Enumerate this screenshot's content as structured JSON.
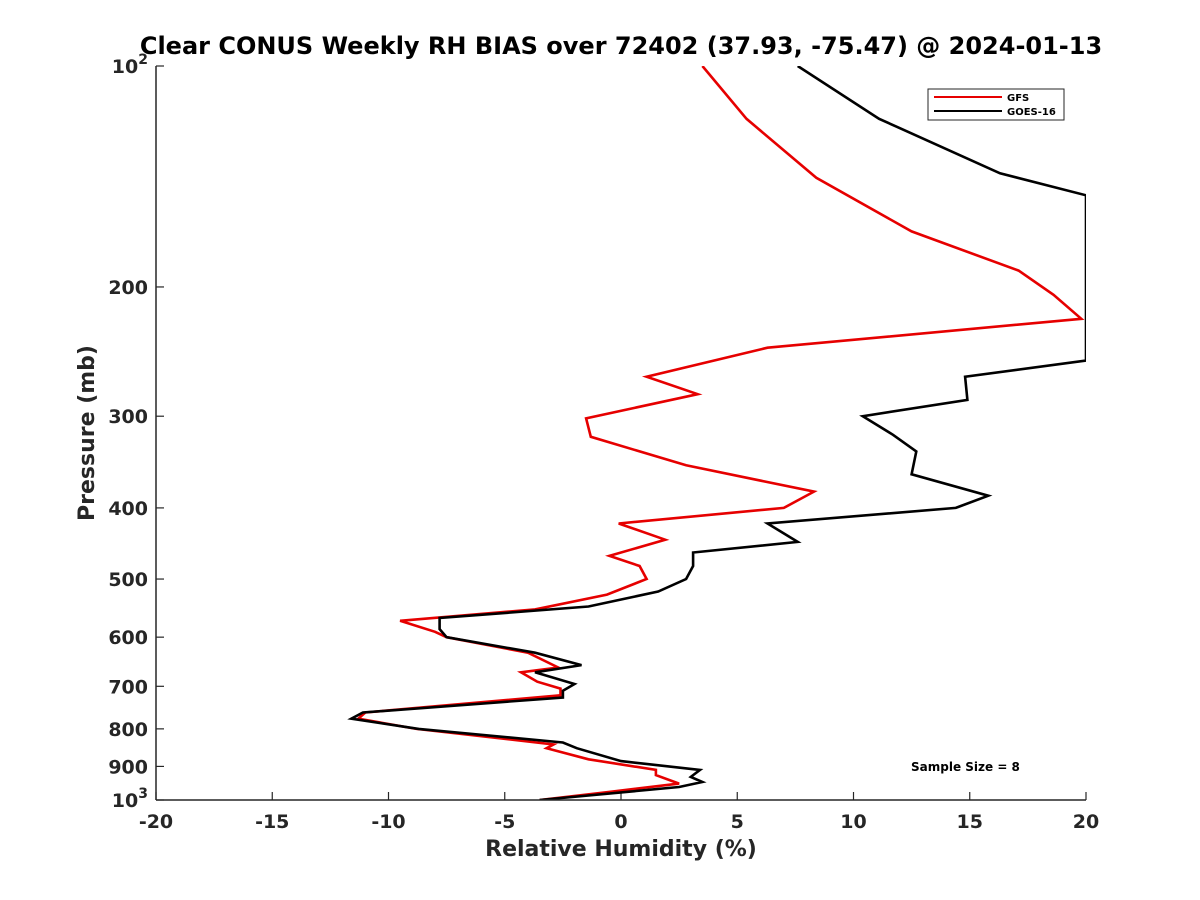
{
  "chart_data": {
    "type": "line",
    "title": "Clear CONUS Weekly RH BIAS over 72402 (37.93, -75.47) @ 2024-01-13",
    "xlabel": "Relative Humidity (%)",
    "ylabel": "Pressure (mb)",
    "xlim": [
      -20,
      20
    ],
    "ylim": [
      100,
      1000
    ],
    "yscale": "log",
    "y_reversed": true,
    "grid": false,
    "legend_position": "top-right",
    "x_ticks": [
      -20,
      -15,
      -10,
      -5,
      0,
      5,
      10,
      15,
      20
    ],
    "x_tick_labels": [
      "-20",
      "-15",
      "-10",
      "-5",
      "0",
      "5",
      "10",
      "15",
      "20"
    ],
    "y_ticks": [
      100,
      200,
      300,
      400,
      500,
      600,
      700,
      800,
      900,
      1000
    ],
    "y_tick_labels": [
      {
        "base": "10",
        "exp": "2"
      },
      {
        "base": "200",
        "exp": ""
      },
      {
        "base": "300",
        "exp": ""
      },
      {
        "base": "400",
        "exp": ""
      },
      {
        "base": "500",
        "exp": ""
      },
      {
        "base": "600",
        "exp": ""
      },
      {
        "base": "700",
        "exp": ""
      },
      {
        "base": "800",
        "exp": ""
      },
      {
        "base": "900",
        "exp": ""
      },
      {
        "base": "10",
        "exp": "3"
      }
    ],
    "series": [
      {
        "name": "GFS",
        "color": "#e60000",
        "x": [
          3.5,
          5.4,
          8.4,
          12.5,
          17.1,
          18.6,
          19.8,
          6.3,
          1.1,
          3.3,
          -1.5,
          -1.3,
          2.8,
          8.3,
          7.0,
          -0.1,
          1.9,
          -0.5,
          0.8,
          1.1,
          -0.6,
          -3.7,
          -9.5,
          -8.0,
          -7.5,
          -4.0,
          -2.7,
          -4.3,
          -3.6,
          -2.6,
          -2.6,
          -11.0,
          -11.3,
          -8.8,
          -2.9,
          -3.2,
          -1.4,
          1.5,
          1.5,
          2.5,
          -0.5,
          -3.5
        ],
        "y": [
          100,
          118,
          142,
          168,
          190,
          205,
          221,
          242,
          265,
          280,
          302,
          320,
          350,
          380,
          400,
          420,
          442,
          465,
          480,
          500,
          525,
          550,
          570,
          590,
          600,
          630,
          660,
          670,
          690,
          705,
          720,
          760,
          775,
          800,
          840,
          850,
          880,
          910,
          925,
          950,
          975,
          1000
        ]
      },
      {
        "name": "GOES-16",
        "color": "#000000",
        "x": [
          7.6,
          11.1,
          16.3,
          20.0,
          20.0,
          14.8,
          14.9,
          10.4,
          11.7,
          12.7,
          12.5,
          15.8,
          14.4,
          6.3,
          7.6,
          3.1,
          3.1,
          2.8,
          1.6,
          -1.4,
          -7.8,
          -7.8,
          -7.5,
          -3.7,
          -1.7,
          -3.7,
          -2.0,
          -2.5,
          -2.5,
          -11.1,
          -11.6,
          -8.7,
          -2.5,
          -1.9,
          0.0,
          3.4,
          3.0,
          3.5,
          2.5,
          -3.5
        ],
        "y": [
          100,
          118,
          140,
          150,
          252,
          265,
          285,
          300,
          318,
          335,
          360,
          385,
          400,
          420,
          445,
          460,
          480,
          500,
          520,
          545,
          565,
          585,
          600,
          630,
          655,
          670,
          695,
          710,
          725,
          760,
          775,
          800,
          835,
          850,
          885,
          910,
          930,
          945,
          960,
          1000
        ]
      }
    ],
    "annotations": [
      {
        "text": "Sample Size = 8",
        "position": "bottom-right"
      }
    ]
  }
}
